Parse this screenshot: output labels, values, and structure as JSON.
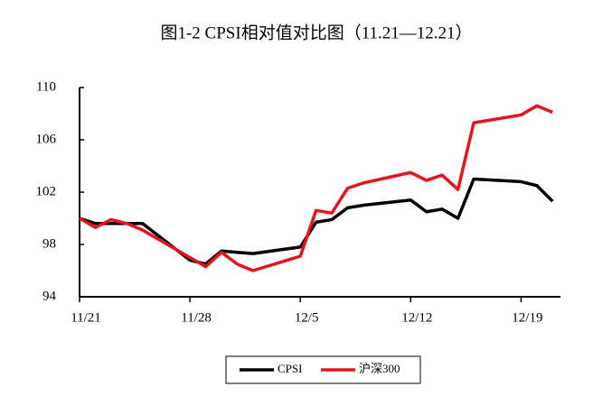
{
  "chart_data": {
    "type": "line",
    "title": "图1-2 CPSI相对值对比图（11.21—12.21）",
    "x": [
      0,
      1,
      2,
      3,
      4,
      7,
      8,
      9,
      10,
      11,
      14,
      15,
      16,
      17,
      18,
      21,
      22,
      23,
      24,
      25,
      28,
      29,
      30
    ],
    "series": [
      {
        "name": "CPSI",
        "color": "#000000",
        "values": [
          100,
          99.6,
          99.6,
          99.6,
          99.6,
          96.8,
          96.5,
          97.5,
          97.4,
          97.3,
          97.8,
          99.7,
          99.9,
          100.8,
          101.0,
          101.4,
          100.5,
          100.7,
          100.0,
          103.0,
          102.8,
          102.5,
          101.3
        ]
      },
      {
        "name": "沪深300",
        "color": "#e8141b",
        "values": [
          100,
          99.3,
          99.9,
          99.6,
          99.1,
          97.0,
          96.3,
          97.4,
          96.5,
          96.0,
          97.1,
          100.6,
          100.4,
          102.3,
          102.7,
          103.5,
          102.9,
          103.3,
          102.2,
          107.3,
          107.9,
          108.6,
          108.1
        ]
      }
    ],
    "xlim": [
      0,
      30.5
    ],
    "xticks": [
      {
        "value": 0,
        "label": "11/21"
      },
      {
        "value": 7,
        "label": "11/28"
      },
      {
        "value": 14,
        "label": "12/5"
      },
      {
        "value": 21,
        "label": "12/12"
      },
      {
        "value": 28,
        "label": "12/19"
      }
    ],
    "ylim": [
      94,
      110
    ],
    "yticks": [
      94,
      98,
      102,
      106,
      110
    ],
    "legend": "bottom"
  }
}
